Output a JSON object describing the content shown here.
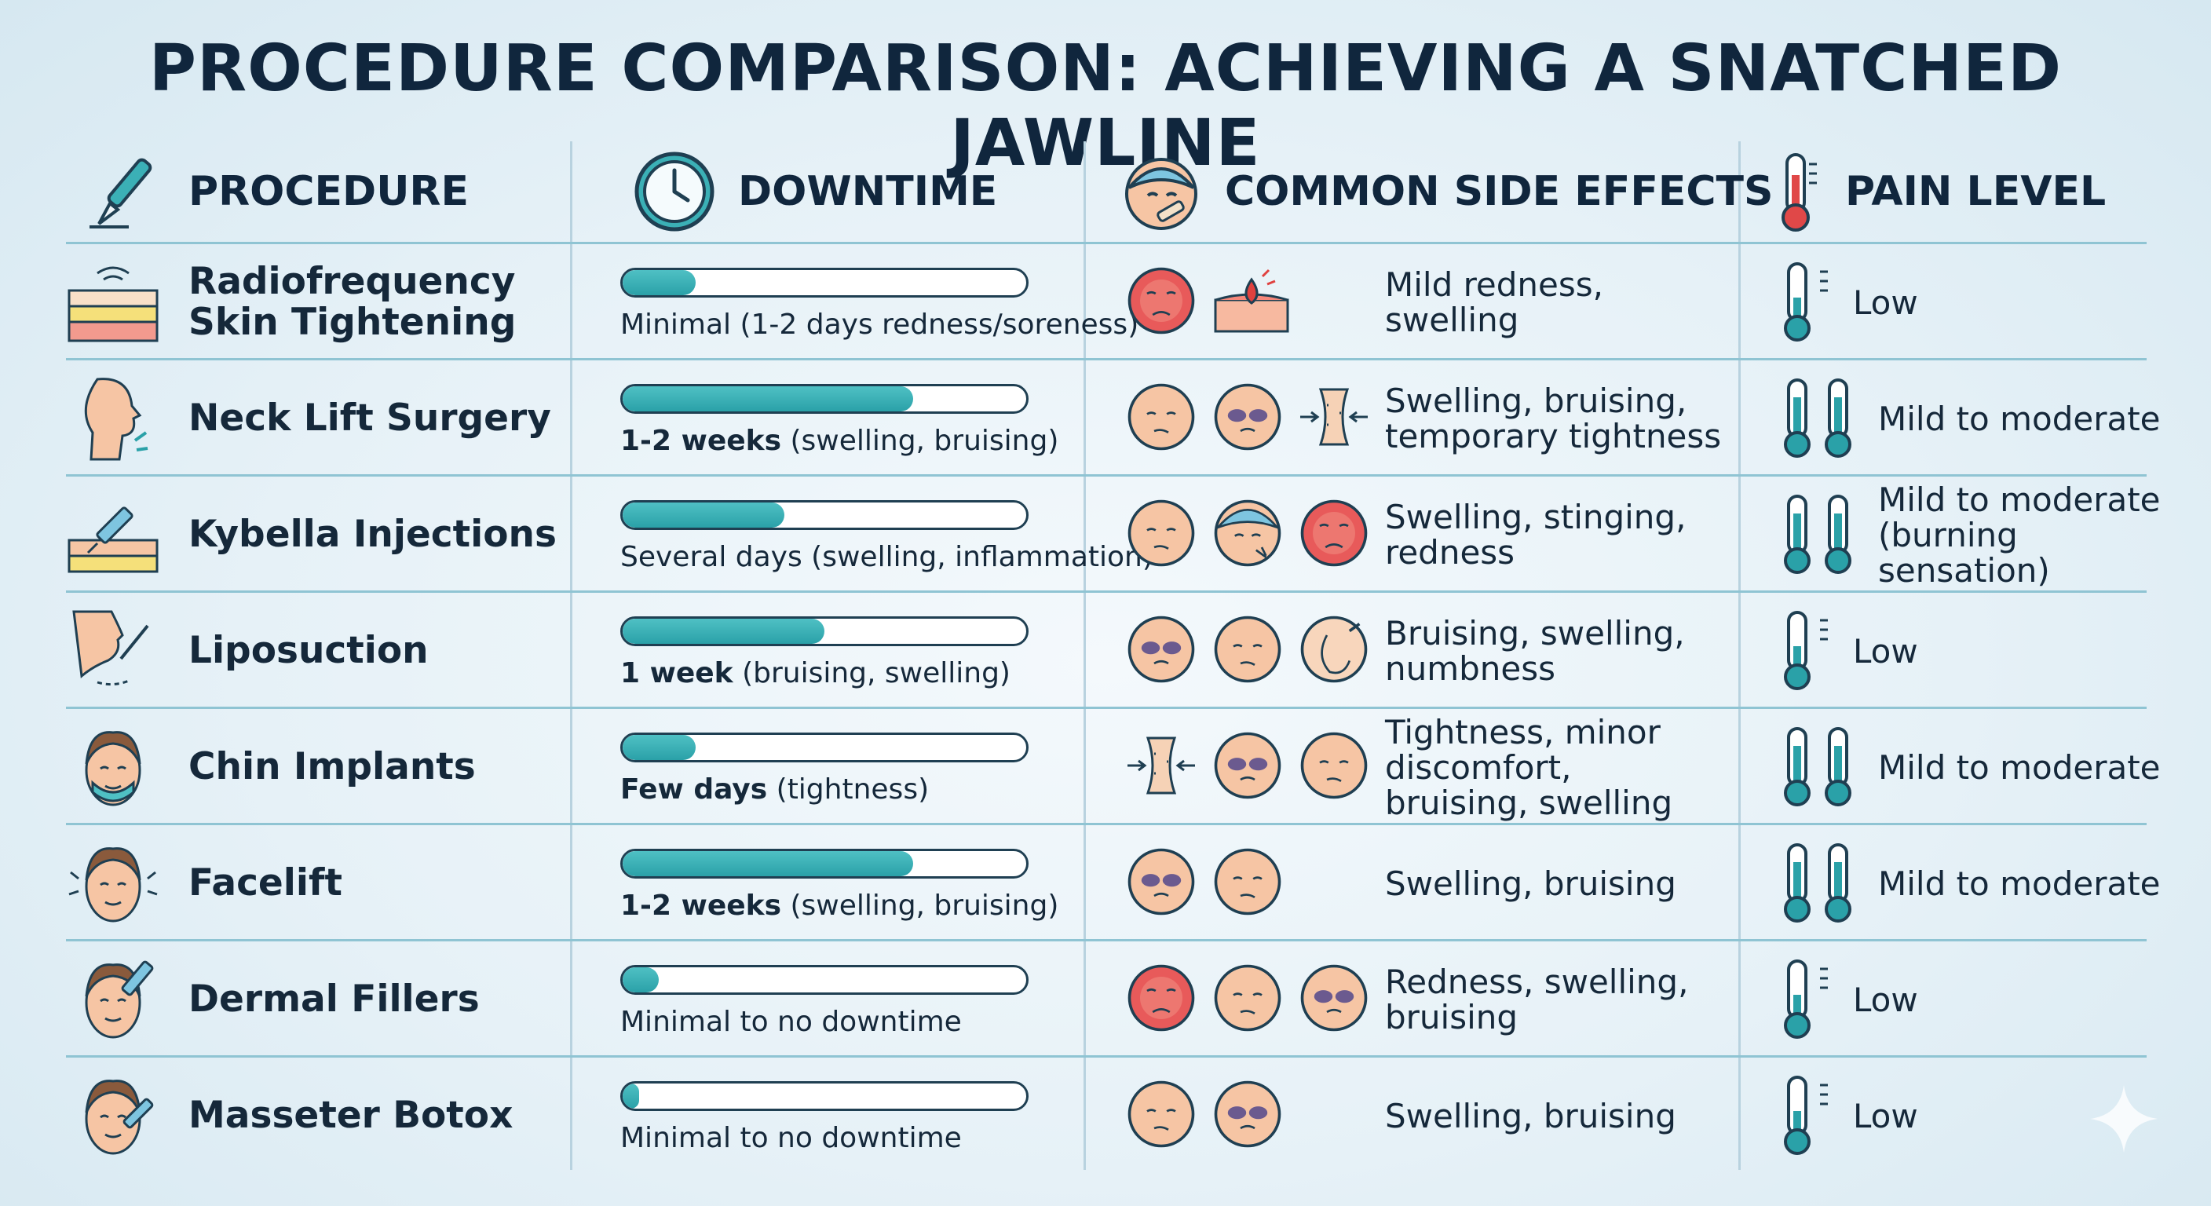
{
  "title": "PROCEDURE COMPARISON: ACHIEVING A SNATCHED JAWLINE",
  "columns": {
    "procedure": "PROCEDURE",
    "downtime": "DOWNTIME",
    "side_effects": "COMMON SIDE EFFECTS",
    "pain": "PAIN LEVEL"
  },
  "colors": {
    "bar": "#2aa1a8",
    "redface": "#e85a5a",
    "face": "#f6c5a4",
    "bruise": "#6b5a8f"
  },
  "chart_data": {
    "type": "table",
    "title": "PROCEDURE COMPARISON: ACHIEVING A SNATCHED JAWLINE",
    "rows": [
      {
        "procedure": "Radiofrequency Skin Tightening",
        "procedure_lines": [
          "Radiofrequency",
          "Skin Tightening"
        ],
        "icon": "skin-layers-icon",
        "downtime_fraction": 0.18,
        "downtime_bold": "",
        "downtime_text": "Minimal (1-2 days redness/soreness)",
        "side_effect_icons": [
          "red-face",
          "skin-burn"
        ],
        "side_effects": "Mild redness, swelling",
        "pain_level": "Low",
        "thermometers": 1,
        "pain_fraction": 0.4
      },
      {
        "procedure": "Neck Lift Surgery",
        "procedure_lines": [
          "Neck Lift Surgery"
        ],
        "icon": "neck-profile-icon",
        "downtime_fraction": 0.72,
        "downtime_bold": "1-2 weeks",
        "downtime_text": " (swelling, bruising)",
        "side_effect_icons": [
          "plain-face",
          "bruised-face",
          "tightness"
        ],
        "side_effects": "Swelling, bruising, temporary tightness",
        "pain_level": "Mild to moderate",
        "thermometers": 2,
        "pain_fraction": 0.7
      },
      {
        "procedure": "Kybella Injections",
        "procedure_lines": [
          "Kybella Injections"
        ],
        "icon": "syringe-skin-icon",
        "downtime_fraction": 0.4,
        "downtime_bold": "",
        "downtime_text": "Several days (swelling, inflammation)",
        "side_effect_icons": [
          "plain-face",
          "capped-face",
          "red-face"
        ],
        "side_effects": "Swelling, stinging, redness",
        "pain_level": "Mild to moderate (burning sensation)",
        "thermometers": 2,
        "pain_fraction": 0.7
      },
      {
        "procedure": "Liposuction",
        "procedure_lines": [
          "Liposuction"
        ],
        "icon": "chin-cannula-icon",
        "downtime_fraction": 0.5,
        "downtime_bold": "1 week",
        "downtime_text": " (bruising, swelling)",
        "side_effect_icons": [
          "bruised-face",
          "plain-face",
          "numb-face"
        ],
        "side_effects": "Bruising, swelling, numbness",
        "pain_level": "Low",
        "thermometers": 1,
        "pain_fraction": 0.4
      },
      {
        "procedure": "Chin Implants",
        "procedure_lines": [
          "Chin Implants"
        ],
        "icon": "chin-implant-icon",
        "downtime_fraction": 0.18,
        "downtime_bold": "Few days",
        "downtime_text": " (tightness)",
        "side_effect_icons": [
          "tightness",
          "bruised-face",
          "plain-face"
        ],
        "side_effects": "Tightness, minor discomfort, bruising, swelling",
        "pain_level": "Mild to moderate",
        "thermometers": 2,
        "pain_fraction": 0.7
      },
      {
        "procedure": "Facelift",
        "procedure_lines": [
          "Facelift"
        ],
        "icon": "facelift-icon",
        "downtime_fraction": 0.72,
        "downtime_bold": "1-2 weeks",
        "downtime_text": " (swelling, bruising)",
        "side_effect_icons": [
          "bruised-face",
          "plain-face"
        ],
        "side_effects": "Swelling, bruising",
        "pain_level": "Mild to moderate",
        "thermometers": 2,
        "pain_fraction": 0.7
      },
      {
        "procedure": "Dermal Fillers",
        "procedure_lines": [
          "Dermal Fillers"
        ],
        "icon": "filler-injection-icon",
        "downtime_fraction": 0.09,
        "downtime_bold": "",
        "downtime_text": "Minimal to no downtime",
        "side_effect_icons": [
          "red-face",
          "plain-face",
          "bruised-face"
        ],
        "side_effects": "Redness, swelling, bruising",
        "pain_level": "Low",
        "thermometers": 1,
        "pain_fraction": 0.4
      },
      {
        "procedure": "Masseter Botox",
        "procedure_lines": [
          "Masseter Botox"
        ],
        "icon": "botox-injection-icon",
        "downtime_fraction": 0.04,
        "downtime_bold": "",
        "downtime_text": "Minimal to no downtime",
        "side_effect_icons": [
          "plain-face",
          "bruised-face"
        ],
        "side_effects": "Swelling, bruising",
        "pain_level": "Low",
        "thermometers": 1,
        "pain_fraction": 0.4
      }
    ]
  }
}
